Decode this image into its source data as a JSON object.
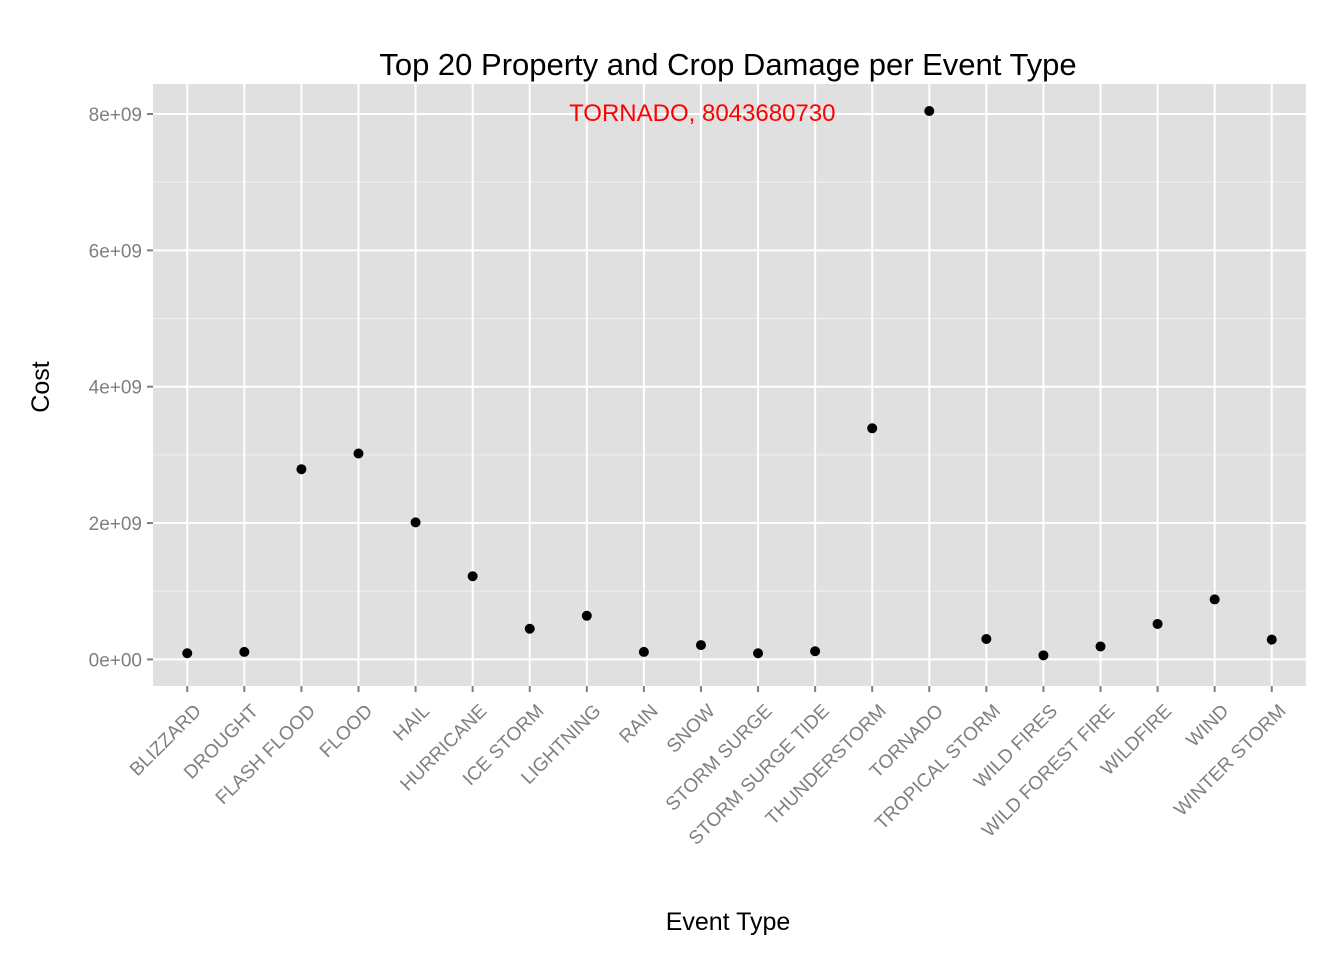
{
  "chart_data": {
    "type": "scatter",
    "title": "Top 20 Property and Crop Damage per Event Type",
    "xlabel": "Event Type",
    "ylabel": "Cost",
    "categories": [
      "BLIZZARD",
      "DROUGHT",
      "FLASH FLOOD",
      "FLOOD",
      "HAIL",
      "HURRICANE",
      "ICE STORM",
      "LIGHTNING",
      "RAIN",
      "SNOW",
      "STORM SURGE",
      "STORM SURGE TIDE",
      "THUNDERSTORM",
      "TORNADO",
      "TROPICAL STORM",
      "WILD FIRES",
      "WILD FOREST FIRE",
      "WILDFIRE",
      "WIND",
      "WINTER STORM"
    ],
    "values": [
      90000000,
      110000000,
      2790000000,
      3020000000,
      2010000000,
      1220000000,
      450000000,
      640000000,
      110000000,
      210000000,
      90000000,
      120000000,
      3390000000,
      8043680730,
      300000000,
      60000000,
      190000000,
      520000000,
      880000000,
      290000000
    ],
    "y_ticks": [
      0,
      2000000000,
      4000000000,
      6000000000,
      8000000000
    ],
    "y_tick_labels": [
      "0e+00",
      "2e+09",
      "4e+09",
      "6e+09",
      "8e+09"
    ],
    "ylim": [
      -390000000,
      8440000000
    ],
    "grid": true,
    "annotation": {
      "text": "TORNADO, 8043680730",
      "category": "TORNADO",
      "color": "#ff0000"
    },
    "point_color": "#000000",
    "panel_background": "#e0e0e0",
    "grid_color": "#ffffff",
    "tick_label_color": "#7f7f7f"
  }
}
